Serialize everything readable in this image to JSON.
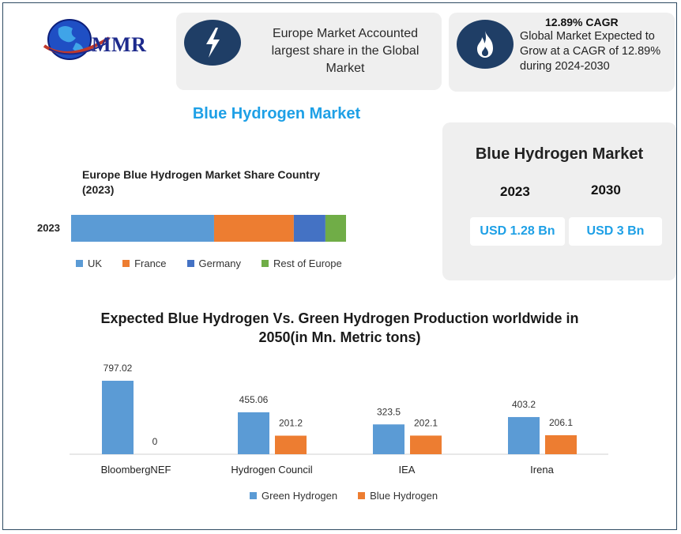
{
  "logo": {
    "text": "MMR"
  },
  "card_europe": {
    "icon": "lightning-icon",
    "text": "Europe Market Accounted largest share in the Global Market"
  },
  "card_cagr": {
    "icon": "flame-icon",
    "title": "12.89% CAGR",
    "text": "Global Market Expected to Grow at a CAGR of 12.89% during 2024-2030"
  },
  "main_title": "Blue Hydrogen Market",
  "market_card": {
    "title": "Blue Hydrogen Market",
    "year_a": "2023",
    "year_b": "2030",
    "value_a": "USD 1.28 Bn",
    "value_b": "USD 3 Bn"
  },
  "colors": {
    "blue": "#5b9bd5",
    "orange": "#ed7d31",
    "dark_blue": "#4472c4",
    "green": "#70ad47",
    "accent": "#1ea0e6",
    "badge": "#1f3e66"
  },
  "chart_data": [
    {
      "type": "bar",
      "orientation": "horizontal-stacked",
      "title": "Europe Blue Hydrogen Market Share Country (2023)",
      "categories": [
        "2023"
      ],
      "series": [
        {
          "name": "UK",
          "values": [
            52
          ],
          "color": "#5b9bd5"
        },
        {
          "name": "France",
          "values": [
            29
          ],
          "color": "#ed7d31"
        },
        {
          "name": "Germany",
          "values": [
            11.5
          ],
          "color": "#4472c4"
        },
        {
          "name": "Rest of Europe",
          "values": [
            7.5
          ],
          "color": "#70ad47"
        }
      ],
      "xlim": [
        0,
        100
      ],
      "legend": "bottom",
      "grid": false
    },
    {
      "type": "bar",
      "title": "Expected Blue Hydrogen Vs. Green Hydrogen Production worldwide in 2050(in Mn. Metric tons)",
      "categories": [
        "BloombergNEF",
        "Hydrogen Council",
        "IEA",
        "Irena"
      ],
      "series": [
        {
          "name": "Green Hydrogen",
          "values": [
            797.02,
            455.06,
            323.5,
            403.2
          ],
          "labels": [
            "797.02",
            "455.06",
            "323.5",
            "403.2"
          ],
          "color": "#5b9bd5"
        },
        {
          "name": "Blue Hydrogen",
          "values": [
            0,
            201.2,
            202.1,
            206.1
          ],
          "labels": [
            "0",
            "201.2",
            "202.1",
            "206.1"
          ],
          "color": "#ed7d31"
        }
      ],
      "ylim": [
        0,
        900
      ],
      "legend": "bottom",
      "grid": false
    }
  ]
}
